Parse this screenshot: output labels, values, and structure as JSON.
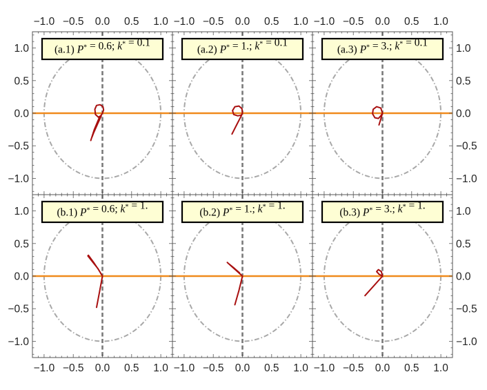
{
  "chart_data": {
    "type": "line",
    "xlim": [
      -1.2,
      1.2
    ],
    "ylim": [
      -1.25,
      1.25
    ],
    "x_ticks": [
      "−1.0",
      "−0.5",
      "0.0",
      "0.5",
      "1.0"
    ],
    "y_ticks": [
      "1.0",
      "0.5",
      "0.0",
      "−0.5",
      "−1.0"
    ],
    "x_tick_values": [
      -1.0,
      -0.5,
      0.0,
      0.5,
      1.0
    ],
    "y_tick_values": [
      1.0,
      0.5,
      0.0,
      -0.5,
      -1.0
    ],
    "grid": false,
    "colors": {
      "trajectory": "#a80f0f",
      "horizontal_line": "#f08a1c",
      "vertical_line": "#7a7a7a",
      "unit_circle": "#a8a8a8",
      "label_box": "#fefed4"
    },
    "panels": [
      {
        "id": "a1",
        "label": {
          "prefix": "(a.1) ",
          "P": "P",
          "P_eq": " = 0.6;  ",
          "k": "k",
          "k_eq": " = 0.1"
        },
        "trajectory": [
          [
            -0.2,
            -0.42
          ],
          [
            -0.14,
            -0.25
          ],
          [
            -0.06,
            -0.08
          ],
          [
            0.0,
            0.0
          ],
          [
            0.02,
            0.05
          ],
          [
            0.01,
            0.1
          ],
          [
            -0.04,
            0.13
          ],
          [
            -0.1,
            0.12
          ],
          [
            -0.13,
            0.06
          ],
          [
            -0.12,
            -0.02
          ],
          [
            -0.07,
            -0.06
          ],
          [
            -0.03,
            -0.04
          ],
          [
            -0.02,
            -0.04
          ],
          [
            -0.08,
            -0.16
          ],
          [
            -0.15,
            -0.3
          ],
          [
            -0.18,
            -0.37
          ]
        ]
      },
      {
        "id": "a2",
        "label": {
          "prefix": "(a.2) ",
          "P": "P",
          "P_eq": " = 1.;  ",
          "k": "k",
          "k_eq": " = 0.1"
        },
        "trajectory": [
          [
            -0.18,
            -0.32
          ],
          [
            -0.1,
            -0.18
          ],
          [
            -0.02,
            -0.04
          ],
          [
            0.0,
            0.0
          ],
          [
            -0.01,
            0.07
          ],
          [
            -0.06,
            0.11
          ],
          [
            -0.13,
            0.1
          ],
          [
            -0.17,
            0.04
          ],
          [
            -0.15,
            -0.02
          ],
          [
            -0.08,
            -0.04
          ],
          [
            -0.02,
            -0.03
          ],
          [
            0.0,
            0.0
          ]
        ]
      },
      {
        "id": "a3",
        "label": {
          "prefix": "(a.3) ",
          "P": "P",
          "P_eq": " = 3.;  ",
          "k": "k",
          "k_eq": " = 0.1"
        },
        "trajectory": [
          [
            -0.06,
            -0.18
          ],
          [
            -0.03,
            -0.09
          ],
          [
            0.0,
            0.0
          ],
          [
            -0.03,
            0.08
          ],
          [
            -0.1,
            0.1
          ],
          [
            -0.16,
            0.06
          ],
          [
            -0.17,
            -0.01
          ],
          [
            -0.13,
            -0.07
          ],
          [
            -0.07,
            -0.08
          ],
          [
            -0.03,
            -0.04
          ],
          [
            0.0,
            0.0
          ]
        ]
      },
      {
        "id": "b1",
        "label": {
          "prefix": "(b.1) ",
          "P": "P",
          "P_eq": " = 0.6;  ",
          "k": "k",
          "k_eq": " = 1."
        },
        "trajectory": [
          [
            -0.1,
            -0.48
          ],
          [
            -0.05,
            -0.24
          ],
          [
            0.0,
            0.0
          ],
          [
            -0.08,
            0.12
          ],
          [
            -0.18,
            0.23
          ],
          [
            -0.25,
            0.31
          ],
          [
            -0.24,
            0.32
          ],
          [
            -0.15,
            0.21
          ],
          [
            -0.06,
            0.09
          ],
          [
            -0.02,
            0.03
          ]
        ]
      },
      {
        "id": "b2",
        "label": {
          "prefix": "(b.2) ",
          "P": "P",
          "P_eq": " = 1.;  ",
          "k": "k",
          "k_eq": " = 1."
        },
        "trajectory": [
          [
            -0.13,
            -0.44
          ],
          [
            -0.06,
            -0.22
          ],
          [
            0.0,
            0.0
          ],
          [
            -0.1,
            0.08
          ],
          [
            -0.2,
            0.16
          ],
          [
            -0.26,
            0.21
          ],
          [
            -0.25,
            0.2
          ],
          [
            -0.14,
            0.12
          ],
          [
            -0.05,
            0.05
          ]
        ]
      },
      {
        "id": "b3",
        "label": {
          "prefix": "(b.3) ",
          "P": "P",
          "P_eq": " = 3.;  ",
          "k": "k",
          "k_eq": " = 1."
        },
        "trajectory": [
          [
            -0.3,
            -0.3
          ],
          [
            -0.15,
            -0.15
          ],
          [
            0.0,
            0.0
          ],
          [
            -0.02,
            0.07
          ],
          [
            -0.07,
            0.1
          ],
          [
            -0.1,
            0.07
          ],
          [
            -0.06,
            0.03
          ],
          [
            0.0,
            0.0
          ]
        ]
      }
    ]
  }
}
